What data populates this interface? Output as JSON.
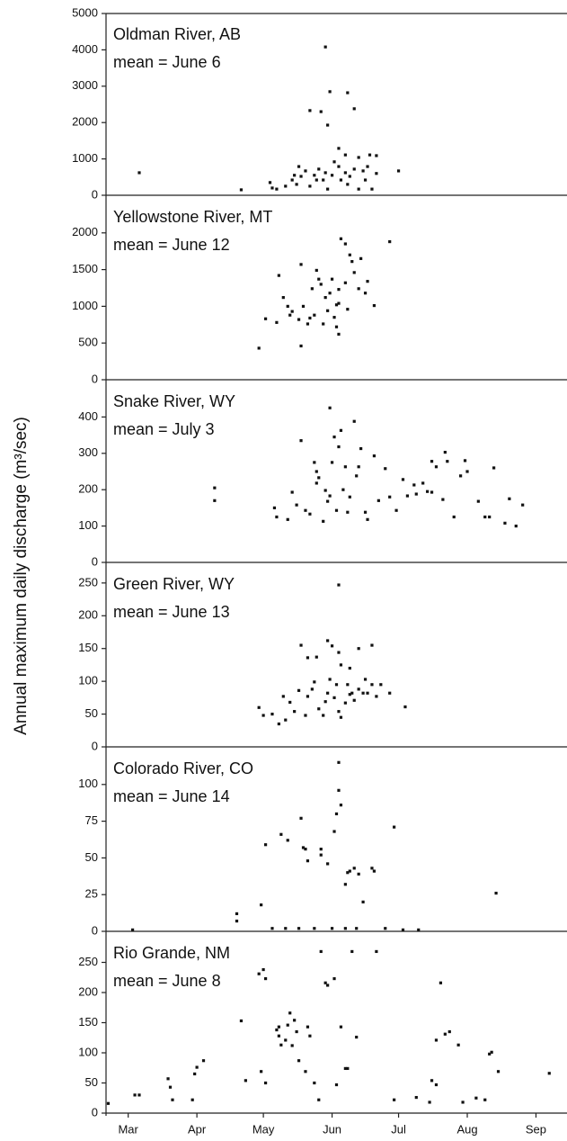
{
  "ylabel": "Annual maximum daily discharge (m³/sec)",
  "chart_data": [
    {
      "type": "scatter",
      "title": "Oldman River, AB",
      "subtitle": "mean = June 6",
      "color": "#111111",
      "xlim": [
        64,
        272
      ],
      "ylim": [
        0,
        5000
      ],
      "yticks": [
        0,
        1000,
        2000,
        3000,
        4000,
        5000
      ],
      "x": [
        79,
        125,
        138,
        139,
        141,
        145,
        148,
        150,
        152,
        154,
        156,
        158,
        159,
        160,
        162,
        163,
        164,
        166,
        167,
        169,
        170,
        172,
        173,
        174,
        176,
        178,
        178,
        180,
        181,
        182,
        183,
        184,
        186,
        186,
        156,
        161,
        163,
        164,
        165,
        173,
        176,
        196,
        149,
        151,
        169,
        172
      ],
      "y": [
        620,
        150,
        350,
        200,
        170,
        250,
        420,
        300,
        520,
        670,
        250,
        550,
        420,
        720,
        420,
        620,
        170,
        550,
        920,
        790,
        420,
        620,
        300,
        520,
        720,
        1040,
        170,
        670,
        420,
        790,
        1110,
        170,
        600,
        1090,
        2330,
        2300,
        4080,
        1930,
        2850,
        2820,
        2380,
        670,
        550,
        790,
        1290,
        1110
      ]
    },
    {
      "type": "scatter",
      "title": "Yellowstone River, MT",
      "subtitle": "mean = June 12",
      "color": "#111111",
      "xlim": [
        64,
        272
      ],
      "ylim": [
        0,
        2500
      ],
      "yticks": [
        0,
        500,
        1000,
        1500,
        2000
      ],
      "x": [
        133,
        136,
        142,
        144,
        146,
        148,
        151,
        152,
        153,
        155,
        156,
        157,
        158,
        159,
        160,
        161,
        162,
        163,
        164,
        165,
        166,
        167,
        168,
        169,
        169,
        170,
        172,
        172,
        173,
        174,
        175,
        176,
        178,
        179,
        181,
        182,
        185,
        192,
        141,
        147,
        152,
        168,
        169
      ],
      "y": [
        430,
        830,
        1420,
        1120,
        1000,
        930,
        820,
        1570,
        1000,
        760,
        840,
        1240,
        880,
        1490,
        1370,
        1300,
        760,
        1120,
        940,
        1180,
        1370,
        850,
        1020,
        1230,
        1040,
        1920,
        1850,
        1320,
        960,
        1700,
        1610,
        1460,
        1240,
        1650,
        1180,
        1340,
        1010,
        1880,
        780,
        880,
        460,
        720,
        620
      ]
    },
    {
      "type": "scatter",
      "title": "Snake River, WY",
      "subtitle": "mean = July 3",
      "color": "#111111",
      "xlim": [
        64,
        272
      ],
      "ylim": [
        0,
        500
      ],
      "yticks": [
        0,
        100,
        200,
        300,
        400
      ],
      "x": [
        113,
        113,
        140,
        141,
        146,
        148,
        150,
        152,
        154,
        156,
        158,
        159,
        160,
        162,
        163,
        164,
        165,
        166,
        167,
        168,
        169,
        170,
        171,
        173,
        174,
        176,
        177,
        178,
        179,
        181,
        182,
        185,
        187,
        190,
        192,
        195,
        198,
        200,
        203,
        204,
        207,
        209,
        211,
        211,
        213,
        216,
        217,
        218,
        221,
        224,
        226,
        227,
        232,
        235,
        237,
        239,
        244,
        246,
        249,
        252,
        165,
        159,
        172
      ],
      "y": [
        205,
        170,
        150,
        125,
        118,
        193,
        158,
        335,
        143,
        133,
        275,
        218,
        233,
        113,
        198,
        168,
        183,
        275,
        345,
        143,
        318,
        363,
        200,
        138,
        180,
        388,
        238,
        263,
        313,
        138,
        118,
        293,
        170,
        258,
        180,
        143,
        228,
        183,
        213,
        188,
        218,
        195,
        278,
        193,
        263,
        173,
        303,
        278,
        125,
        238,
        280,
        250,
        168,
        125,
        125,
        260,
        108,
        175,
        100,
        158,
        425,
        250,
        263
      ]
    },
    {
      "type": "scatter",
      "title": "Green River, WY",
      "subtitle": "mean = June 13",
      "color": "#111111",
      "xlim": [
        64,
        272
      ],
      "ylim": [
        0,
        280
      ],
      "yticks": [
        0,
        50,
        100,
        150,
        200,
        250
      ],
      "x": [
        133,
        135,
        139,
        142,
        144,
        145,
        147,
        149,
        151,
        152,
        154,
        155,
        157,
        158,
        159,
        160,
        162,
        163,
        164,
        165,
        166,
        167,
        168,
        169,
        169,
        170,
        170,
        172,
        173,
        174,
        174,
        175,
        176,
        178,
        178,
        180,
        181,
        182,
        184,
        184,
        186,
        188,
        192,
        199,
        169,
        164,
        155
      ],
      "y": [
        60,
        48,
        50,
        35,
        77,
        41,
        68,
        54,
        86,
        155,
        48,
        77,
        88,
        99,
        137,
        58,
        48,
        69,
        82,
        103,
        154,
        75,
        95,
        144,
        54,
        45,
        125,
        67,
        95,
        80,
        120,
        82,
        71,
        150,
        88,
        82,
        103,
        82,
        95,
        155,
        77,
        95,
        82,
        61,
        247,
        162,
        136
      ]
    },
    {
      "type": "scatter",
      "title": "Colorado River, CO",
      "subtitle": "mean = June 14",
      "color": "#111111",
      "xlim": [
        64,
        272
      ],
      "ylim": [
        0,
        125
      ],
      "yticks": [
        0,
        25,
        50,
        75,
        100
      ],
      "x": [
        76,
        123,
        123,
        134,
        136,
        143,
        146,
        152,
        153,
        154,
        155,
        161,
        161,
        164,
        167,
        168,
        169,
        170,
        169,
        172,
        173,
        174,
        176,
        178,
        180,
        184,
        185,
        194,
        240,
        139,
        145,
        151,
        158,
        166,
        172,
        177,
        190,
        198,
        205
      ],
      "y": [
        1,
        12,
        7,
        18,
        59,
        66,
        62,
        77,
        57,
        56,
        48,
        56,
        52,
        46,
        68,
        80,
        96,
        86,
        115,
        32,
        40,
        41,
        43,
        39,
        20,
        43,
        41,
        71,
        26,
        2,
        2,
        2,
        2,
        2,
        2,
        2,
        2,
        1,
        1
      ]
    },
    {
      "type": "scatter",
      "title": "Rio Grande, NM",
      "subtitle": "mean = June 8",
      "color": "#111111",
      "xlim": [
        64,
        272
      ],
      "ylim": [
        0,
        300
      ],
      "yticks": [
        0,
        50,
        100,
        150,
        200,
        250
      ],
      "xticks": [
        {
          "value": 74,
          "label": "Mar"
        },
        {
          "value": 105,
          "label": "Apr"
        },
        {
          "value": 135,
          "label": "May"
        },
        {
          "value": 166,
          "label": "Jun"
        },
        {
          "value": 196,
          "label": "Jul"
        },
        {
          "value": 227,
          "label": "Aug"
        },
        {
          "value": 258,
          "label": "Sep"
        }
      ],
      "x": [
        65,
        77,
        79,
        92,
        93,
        94,
        103,
        104,
        105,
        108,
        125,
        127,
        133,
        135,
        136,
        134,
        136,
        141,
        142,
        142,
        143,
        145,
        146,
        147,
        148,
        149,
        150,
        151,
        154,
        155,
        156,
        158,
        160,
        161,
        163,
        164,
        167,
        168,
        170,
        172,
        173,
        175,
        177,
        186,
        194,
        204,
        210,
        211,
        213,
        213,
        215,
        217,
        219,
        223,
        225,
        231,
        235,
        237,
        238,
        241,
        264
      ],
      "y": [
        16,
        30,
        30,
        57,
        43,
        22,
        22,
        65,
        76,
        87,
        153,
        54,
        231,
        238,
        223,
        69,
        50,
        138,
        128,
        143,
        113,
        121,
        146,
        166,
        112,
        154,
        135,
        87,
        69,
        143,
        128,
        50,
        22,
        268,
        216,
        212,
        223,
        47,
        143,
        74,
        74,
        268,
        126,
        268,
        22,
        26,
        18,
        54,
        47,
        121,
        216,
        131,
        135,
        113,
        18,
        25,
        22,
        98,
        101,
        69,
        66
      ]
    }
  ]
}
